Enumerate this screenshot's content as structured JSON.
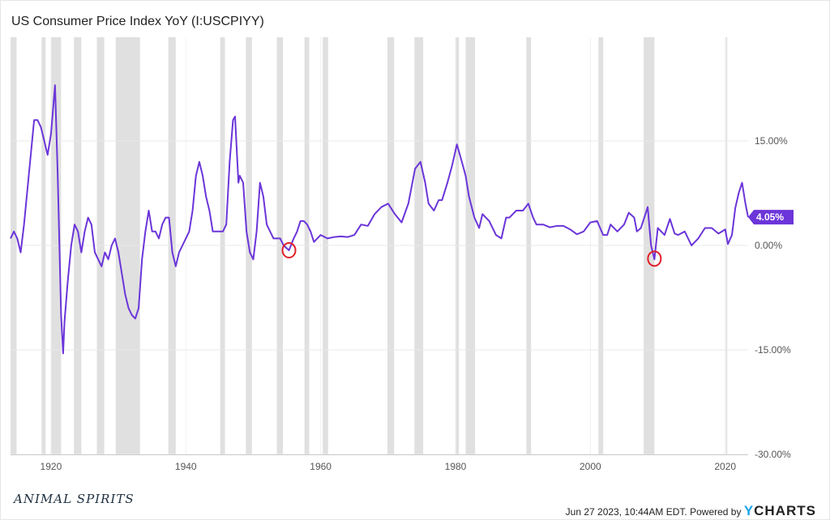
{
  "chart_data": {
    "type": "line",
    "title": "US Consumer Price Index YoY (I:USCPIYY)",
    "xlim": [
      1914,
      2023.4
    ],
    "ylim": [
      -30,
      30
    ],
    "x_ticks": [
      1920,
      1940,
      1960,
      1980,
      2000,
      2020
    ],
    "y_ticks": [
      {
        "v": 15,
        "label": "15.00%"
      },
      {
        "v": 0,
        "label": "0.00%"
      },
      {
        "v": -15,
        "label": "-15.00%"
      },
      {
        "v": -30,
        "label": "-30.00%"
      }
    ],
    "grid": true,
    "line_color": "#6b35d9",
    "recession_color": "#e0e0e0",
    "last_value_label": "4.05%",
    "recessions": [
      [
        1913.0,
        1914.9
      ],
      [
        1918.6,
        1919.2
      ],
      [
        1920.0,
        1921.5
      ],
      [
        1923.4,
        1924.5
      ],
      [
        1926.8,
        1927.9
      ],
      [
        1929.6,
        1933.2
      ],
      [
        1937.4,
        1938.5
      ],
      [
        1945.1,
        1945.8
      ],
      [
        1948.9,
        1949.8
      ],
      [
        1953.5,
        1954.4
      ],
      [
        1957.6,
        1958.3
      ],
      [
        1960.3,
        1961.1
      ],
      [
        1969.9,
        1970.9
      ],
      [
        1973.9,
        1975.2
      ],
      [
        1980.0,
        1980.5
      ],
      [
        1981.5,
        1982.9
      ],
      [
        1990.5,
        1991.2
      ],
      [
        2001.2,
        2001.9
      ],
      [
        2007.9,
        2009.5
      ],
      [
        2020.1,
        2020.3
      ]
    ],
    "highlight_circles": [
      [
        1955.3,
        -0.7
      ],
      [
        2009.5,
        -1.9
      ]
    ],
    "series": [
      {
        "x": [
          1914,
          1914.5,
          1915,
          1915.5,
          1916,
          1916.5,
          1917,
          1917.5,
          1918,
          1918.5,
          1919,
          1919.5,
          1920,
          1920.6,
          1921,
          1921.5,
          1921.8,
          1922,
          1922.5,
          1923,
          1923.5,
          1924,
          1924.5,
          1925,
          1925.5,
          1926,
          1926.5,
          1927,
          1927.5,
          1928,
          1928.5,
          1929,
          1929.5,
          1930,
          1930.5,
          1931,
          1931.5,
          1932,
          1932.5,
          1933,
          1933.5,
          1934,
          1934.5,
          1935,
          1935.5,
          1936,
          1936.5,
          1937,
          1937.5,
          1938,
          1938.5,
          1939,
          1939.5,
          1940,
          1940.5,
          1941,
          1941.5,
          1942,
          1942.5,
          1943,
          1943.5,
          1944,
          1944.5,
          1945,
          1945.5,
          1946,
          1946.5,
          1947,
          1947.3,
          1947.8,
          1948,
          1948.5,
          1949,
          1949.5,
          1950,
          1950.5,
          1951,
          1951.5,
          1952,
          1952.5,
          1953,
          1953.5,
          1954,
          1954.5,
          1955.3,
          1956,
          1956.5,
          1957,
          1957.5,
          1958,
          1958.5,
          1959,
          1960,
          1961,
          1962,
          1963,
          1964,
          1965,
          1966,
          1967,
          1968,
          1969,
          1970,
          1971,
          1972,
          1973,
          1974,
          1974.8,
          1975.5,
          1976,
          1976.8,
          1977.5,
          1978,
          1978.8,
          1979.5,
          1980.2,
          1980.8,
          1981.5,
          1982,
          1982.8,
          1983.5,
          1984,
          1985,
          1986,
          1986.8,
          1987.5,
          1988,
          1989,
          1990,
          1990.8,
          1991.5,
          1992,
          1993,
          1994,
          1995,
          1996,
          1997,
          1998,
          1999,
          2000,
          2001,
          2001.9,
          2002.5,
          2003,
          2004,
          2005,
          2005.7,
          2006.5,
          2006.9,
          2007.5,
          2008.5,
          2009,
          2009.5,
          2010,
          2011,
          2011.8,
          2012.5,
          2013,
          2014,
          2015,
          2016,
          2017,
          2018,
          2019,
          2020,
          2020.4,
          2021,
          2021.5,
          2022,
          2022.5,
          2023,
          2023.4
        ],
        "y": [
          1,
          2,
          1,
          -1,
          3,
          8,
          13,
          18,
          18,
          17,
          15,
          13,
          16,
          23,
          10,
          -10,
          -15.5,
          -11,
          -5,
          0,
          3,
          2,
          -1,
          2,
          4,
          3,
          -1,
          -2,
          -3,
          -1,
          -2,
          0,
          1,
          -1,
          -4,
          -7,
          -9,
          -10,
          -10.5,
          -9,
          -2,
          2,
          5,
          2,
          2,
          1,
          3,
          4,
          4,
          -1,
          -3,
          -1,
          0,
          1,
          2,
          5,
          10,
          12,
          10,
          7,
          5,
          2,
          2,
          2,
          2,
          3,
          12,
          18,
          18.5,
          9,
          10,
          9,
          2,
          -1,
          -2,
          2,
          9,
          7,
          3,
          2,
          1,
          1,
          1,
          0,
          -0.7,
          1,
          2,
          3.5,
          3.5,
          3,
          2,
          0.5,
          1.5,
          1,
          1.2,
          1.3,
          1.2,
          1.5,
          3,
          2.8,
          4.5,
          5.5,
          6,
          4.5,
          3.3,
          6,
          11,
          12,
          9,
          6,
          5,
          6.5,
          6.5,
          9,
          11.5,
          14.5,
          12.5,
          10,
          7,
          4,
          2.5,
          4.5,
          3.5,
          1.5,
          1,
          4,
          4,
          5,
          5,
          6,
          4,
          3,
          3,
          2.6,
          2.8,
          2.8,
          2.3,
          1.6,
          2,
          3.3,
          3.5,
          1.5,
          1.5,
          3,
          2,
          3,
          4.7,
          4,
          2,
          2.5,
          5.5,
          0,
          -2,
          2.5,
          1.5,
          3.8,
          1.7,
          1.5,
          2,
          0,
          1,
          2.5,
          2.5,
          1.7,
          2.3,
          0.2,
          1.5,
          5.4,
          7.5,
          9,
          6,
          4.05
        ]
      }
    ]
  },
  "footer": {
    "timestamp": "Jun 27 2023, 10:44AM EDT. Powered by",
    "brand_y": "Y",
    "brand_rest": "CHARTS"
  },
  "logo_text": "ANIMAL SPIRITS"
}
